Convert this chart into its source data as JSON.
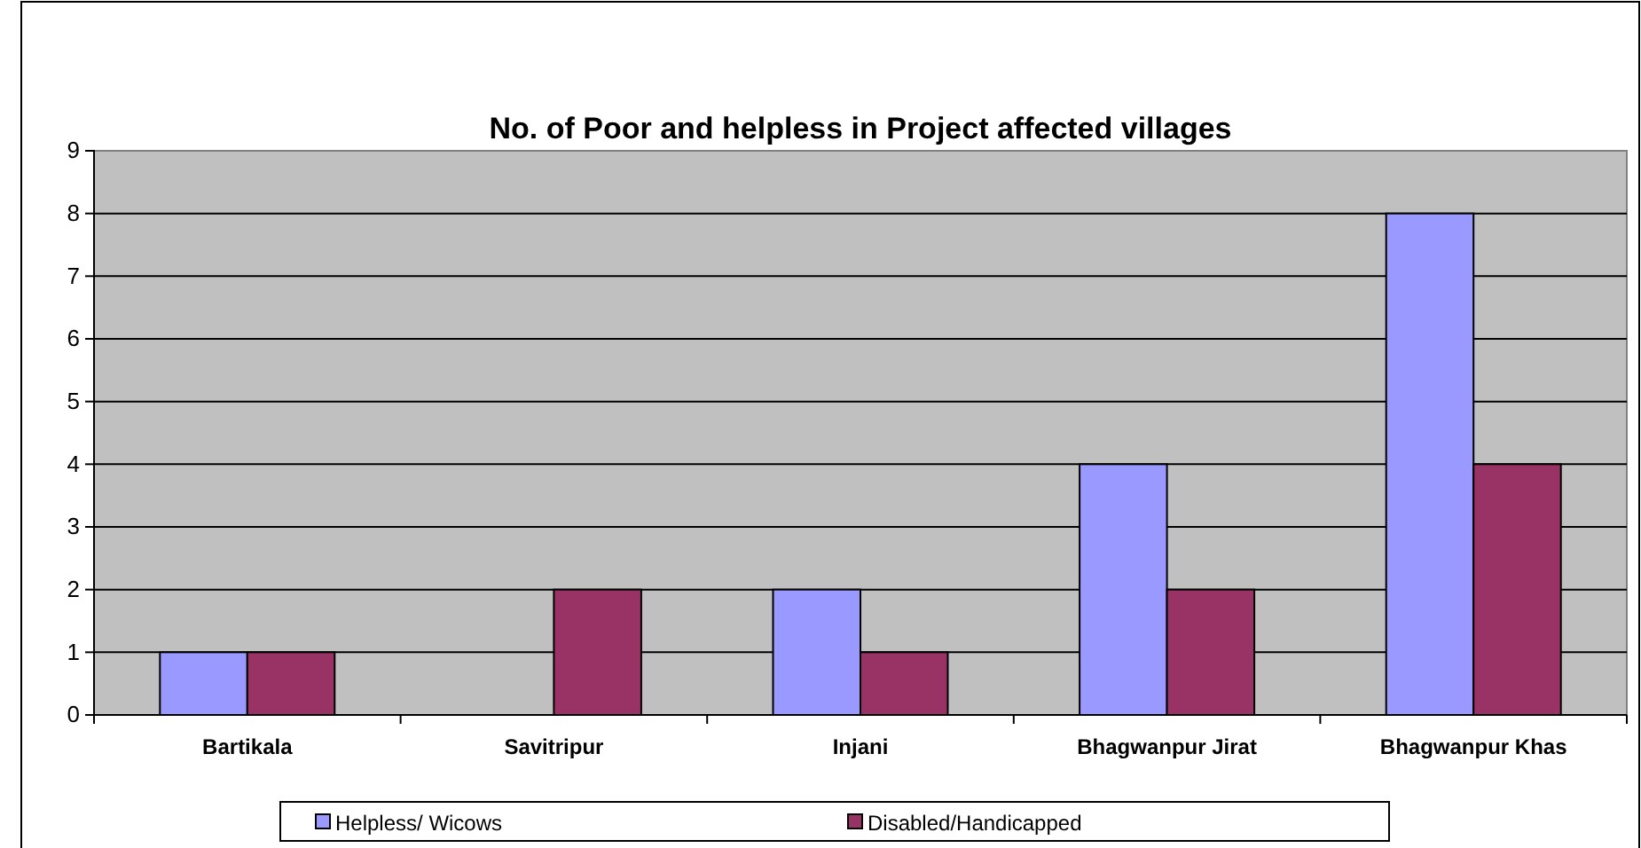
{
  "chart_data": {
    "type": "bar",
    "title": "No. of Poor and  helpless in Project affected villages",
    "categories": [
      "Bartikala",
      "Savitripur",
      "Injani",
      "Bhagwanpur Jirat",
      "Bhagwanpur Khas"
    ],
    "series": [
      {
        "name": "Helpless/ Wicows",
        "color": "#9999ff",
        "values": [
          1,
          0,
          2,
          4,
          8
        ]
      },
      {
        "name": "Disabled/Handicapped",
        "color": "#993366",
        "values": [
          1,
          2,
          1,
          2,
          4
        ]
      }
    ],
    "ylim": [
      0,
      9
    ],
    "yticks": [
      0,
      1,
      2,
      3,
      4,
      5,
      6,
      7,
      8,
      9
    ],
    "grid": "y",
    "legend": "bottom"
  }
}
